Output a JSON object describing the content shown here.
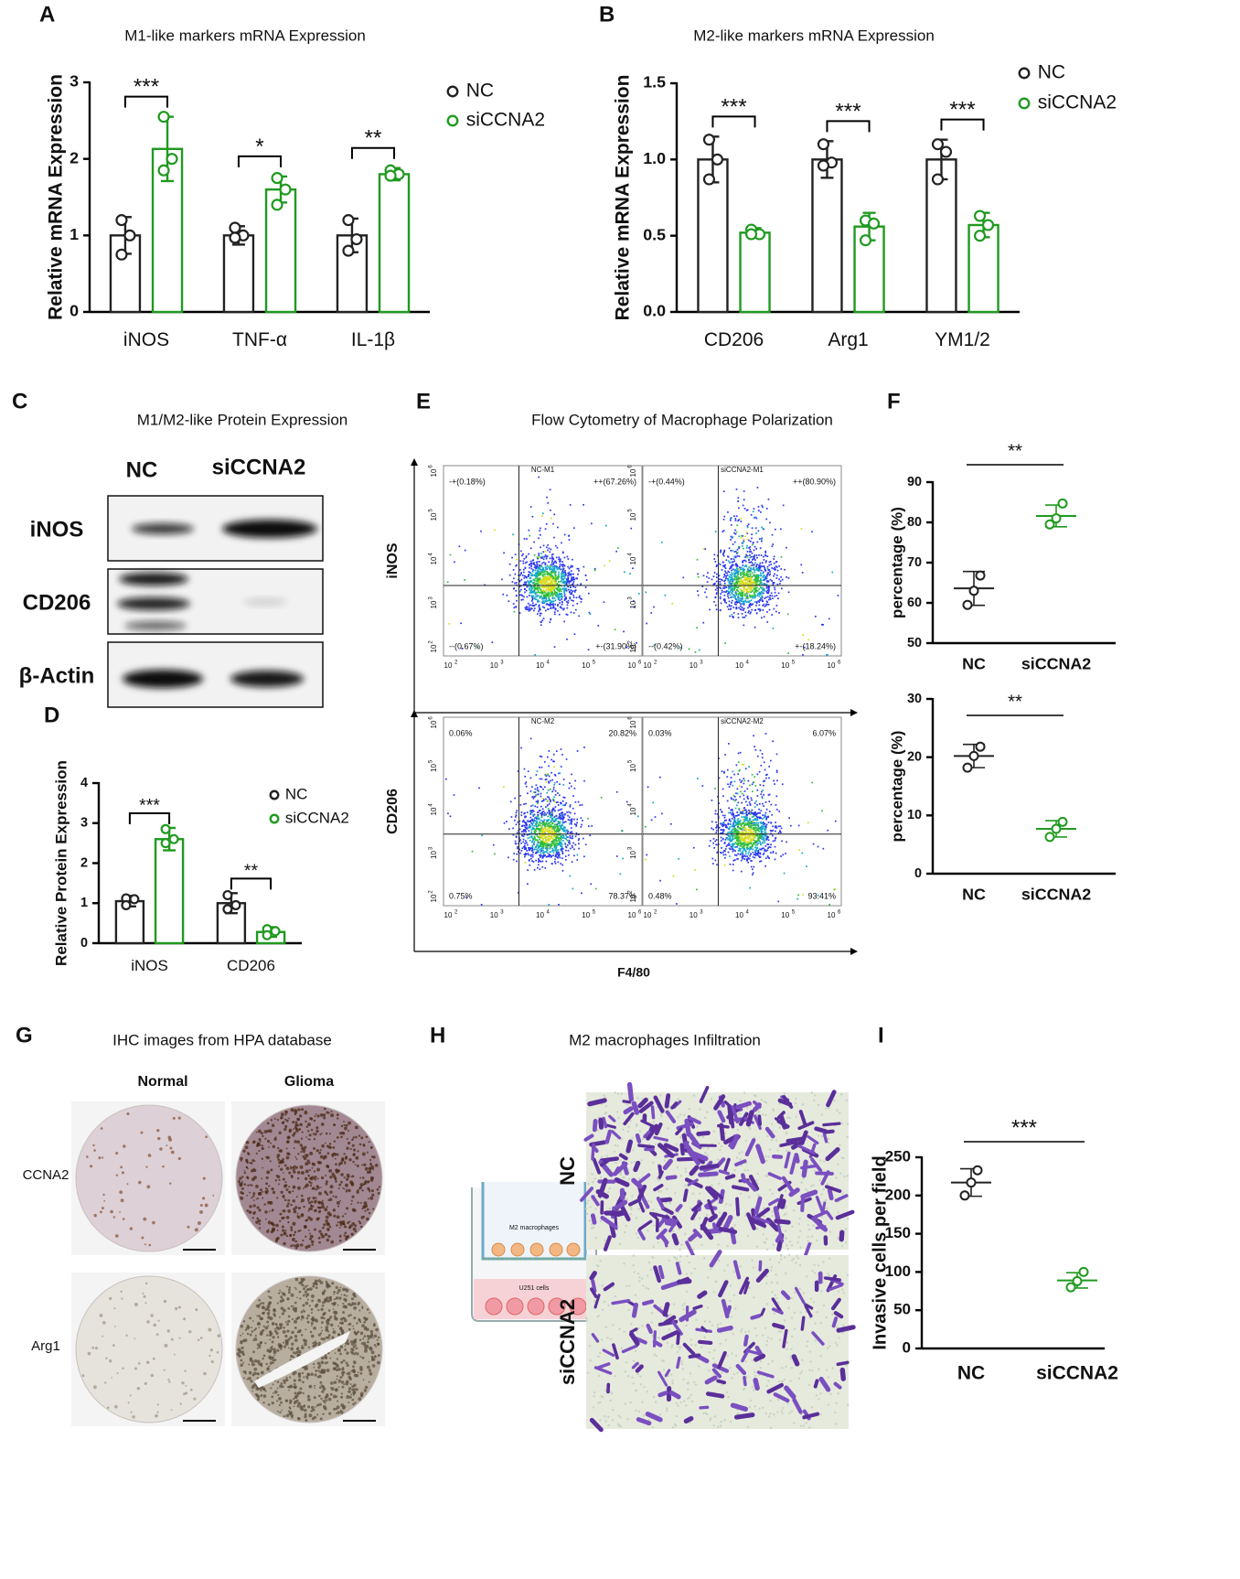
{
  "figure": {
    "panel_labels": [
      "A",
      "B",
      "C",
      "D",
      "E",
      "F",
      "G",
      "H",
      "I"
    ]
  },
  "chart_data": [
    {
      "type": "bar",
      "title": "M1-like markers mRNA Expression",
      "y_label": "Relative mRNA  Expression",
      "categories": [
        "iNOS",
        "TNF-α",
        "IL-1β"
      ],
      "series": [
        {
          "name": "NC",
          "color": "#222222",
          "values": [
            1.0,
            1.0,
            1.0
          ],
          "errors": [
            0.24,
            0.12,
            0.22
          ],
          "points": [
            [
              1.2,
              1.0,
              0.75
            ],
            [
              1.1,
              1.0,
              0.97
            ],
            [
              1.2,
              0.95,
              0.8
            ]
          ]
        },
        {
          "name": "siCCNA2",
          "color": "#1f9a1f",
          "values": [
            2.13,
            1.6,
            1.8
          ],
          "errors": [
            0.42,
            0.17,
            0.08
          ],
          "points": [
            [
              2.55,
              2.0,
              1.85
            ],
            [
              1.75,
              1.6,
              1.4
            ],
            [
              1.85,
              1.8,
              1.78
            ]
          ]
        }
      ],
      "significance": [
        "***",
        "*",
        "**"
      ],
      "ylim": [
        0,
        3
      ],
      "yticks": [
        0,
        1,
        2,
        3
      ],
      "legend": "upper right"
    },
    {
      "type": "bar",
      "title": "M2-like markers mRNA Expression",
      "y_label": "Relative mRNA  Expression",
      "categories": [
        "CD206",
        "Arg1",
        "YM1/2"
      ],
      "series": [
        {
          "name": "NC",
          "color": "#222222",
          "values": [
            1.0,
            1.0,
            1.0
          ],
          "errors": [
            0.15,
            0.12,
            0.13
          ],
          "points": [
            [
              1.13,
              1.0,
              0.87
            ],
            [
              1.1,
              0.98,
              0.96
            ],
            [
              1.1,
              1.05,
              0.87
            ]
          ]
        },
        {
          "name": "siCCNA2",
          "color": "#1f9a1f",
          "values": [
            0.52,
            0.56,
            0.57
          ],
          "errors": [
            0.03,
            0.09,
            0.08
          ],
          "points": [
            [
              0.54,
              0.51,
              0.51
            ],
            [
              0.6,
              0.58,
              0.47
            ],
            [
              0.63,
              0.57,
              0.5
            ]
          ]
        }
      ],
      "significance": [
        "***",
        "***",
        "***"
      ],
      "ylim": [
        0,
        1.5
      ],
      "yticks": [
        {
          "value": 0,
          "label": "0.0"
        },
        0.5,
        {
          "value": 1,
          "label": "1.0"
        },
        1.5
      ],
      "legend": "upper right"
    },
    {
      "type": "bar",
      "y_label": "Relative Protein  Expression",
      "categories": [
        "iNOS",
        "CD206"
      ],
      "series": [
        {
          "name": "NC",
          "color": "#222222",
          "values": [
            1.05,
            1.0
          ],
          "errors": [
            0.13,
            0.25
          ],
          "points": [
            [
              1.12,
              1.1,
              0.95
            ],
            [
              1.2,
              0.95,
              0.85
            ]
          ]
        },
        {
          "name": "siCCNA2",
          "color": "#1f9a1f",
          "values": [
            2.6,
            0.28
          ],
          "errors": [
            0.28,
            0.12
          ],
          "points": [
            [
              2.85,
              2.6,
              2.5
            ],
            [
              0.35,
              0.3,
              0.2
            ]
          ]
        }
      ],
      "significance": [
        "***",
        "**"
      ],
      "ylim": [
        0,
        4
      ],
      "yticks": [
        0,
        1,
        2,
        3,
        4
      ],
      "legend": "upper right"
    },
    {
      "type": "strip",
      "y_label": "percentage (%)",
      "categories": [
        "NC",
        "siCCNA2"
      ],
      "colors": [
        "#222222",
        "#1f9a1f"
      ],
      "means": [
        63.6,
        81.6
      ],
      "sds": [
        4.2,
        2.7
      ],
      "points": [
        [
          66.8,
          63,
          59.5
        ],
        [
          84.7,
          81,
          79.5
        ]
      ],
      "significance": "**",
      "ylim": [
        50,
        90
      ],
      "yticks": [
        50,
        60,
        70,
        80,
        90
      ]
    },
    {
      "type": "strip",
      "y_label": "percentage (%)",
      "categories": [
        "NC",
        "siCCNA2"
      ],
      "colors": [
        "#222222",
        "#1f9a1f"
      ],
      "means": [
        20.2,
        7.7
      ],
      "sds": [
        2.0,
        1.4
      ],
      "points": [
        [
          21.8,
          20.2,
          18.2
        ],
        [
          8.9,
          7.7,
          6.3
        ]
      ],
      "significance": "**",
      "ylim": [
        0,
        30
      ],
      "yticks": [
        0,
        10,
        20,
        30
      ]
    },
    {
      "type": "strip",
      "y_label": "Invasive cells per field",
      "categories": [
        "NC",
        "siCCNA2"
      ],
      "colors": [
        "#222222",
        "#1f9a1f"
      ],
      "means": [
        217,
        89
      ],
      "sds": [
        18,
        10
      ],
      "points": [
        [
          233,
          217,
          200
        ],
        [
          100,
          88,
          80
        ]
      ],
      "significance": "***",
      "ylim": [
        0,
        250
      ],
      "yticks": [
        0,
        50,
        100,
        150,
        200,
        250
      ]
    }
  ],
  "panel_c": {
    "title": "M1/M2-like Protein Expression",
    "columns": [
      "NC",
      "siCCNA2"
    ],
    "rows": [
      "iNOS",
      "CD206",
      "β-Actin"
    ]
  },
  "panel_e": {
    "title": "Flow Cytometry of Macrophage Polarization",
    "x_label": "F4/80",
    "axis_base": "10",
    "axis_exponents": [
      "2",
      "3",
      "4",
      "5",
      "6"
    ],
    "rows": [
      {
        "label": "iNOS",
        "plots": [
          {
            "title": "NC-M1",
            "quadrants": [
              "-+(0.18%)",
              "++(67.26%)",
              "--(0.67%)",
              "+-(31.90%)"
            ]
          },
          {
            "title": "siCCNA2-M1",
            "quadrants": [
              "-+(0.44%)",
              "++(80.90%)",
              "--(0.42%)",
              "+-(18.24%)"
            ]
          }
        ]
      },
      {
        "label": "CD206",
        "plots": [
          {
            "title": "NC-M2",
            "quadrants": [
              "0.06%",
              "20.82%",
              "0.75%",
              "78.37%"
            ]
          },
          {
            "title": "siCCNA2-M2",
            "quadrants": [
              "0.03%",
              "6.07%",
              "0.48%",
              "93.41%"
            ]
          }
        ]
      }
    ]
  },
  "panel_g": {
    "title": "IHC images from HPA database",
    "columns": [
      "Normal",
      "Glioma"
    ],
    "rows": [
      "CCNA2",
      "Arg1"
    ]
  },
  "panel_h": {
    "title": "M2 macrophages Infiltration",
    "chamber_labels": [
      "M2 macrophages",
      "U251 cells"
    ],
    "rows": [
      "NC",
      "siCCNA2"
    ]
  }
}
